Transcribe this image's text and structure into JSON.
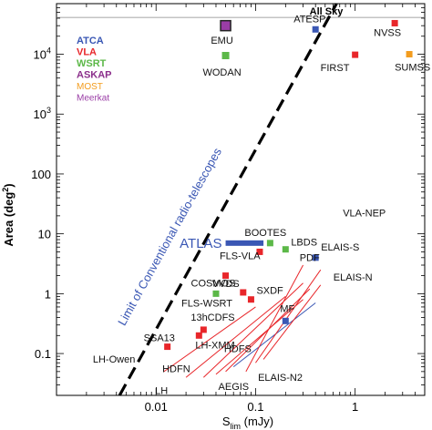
{
  "chart_data": {
    "type": "scatter",
    "title": "",
    "xlabel_main": "S",
    "xlabel_sub": "lim",
    "xlabel_unit": " (mJy)",
    "ylabel_main": "Area (deg",
    "ylabel_sup": "2",
    "ylabel_close": ")",
    "x_scale": "log",
    "y_scale": "log",
    "xlim": [
      0.001,
      5
    ],
    "ylim": [
      0.02,
      70000
    ],
    "x_ticks": [
      {
        "value": 0.01,
        "label": "0.01"
      },
      {
        "value": 0.1,
        "label": "0.1"
      },
      {
        "value": 1,
        "label": "1"
      }
    ],
    "y_ticks": [
      {
        "value": 0.1,
        "label": "0.1"
      },
      {
        "value": 1,
        "label": "1"
      },
      {
        "value": 10,
        "label": "10"
      },
      {
        "value": 100,
        "label": "100"
      },
      {
        "value": 1000,
        "label": "10",
        "sup": "3"
      },
      {
        "value": 10000,
        "label": "10",
        "sup": "4"
      }
    ],
    "all_sky": {
      "label": "All Sky",
      "area": 41253
    },
    "limit_line": {
      "label": "Limit of Conventional radio-telescopes",
      "p1": [
        0.0043,
        0.02
      ],
      "p2": [
        0.65,
        70000
      ]
    },
    "legend": [
      {
        "label": "ATCA",
        "color": "#3a57b4"
      },
      {
        "label": "VLA",
        "color": "#e8262a"
      },
      {
        "label": "WSRT",
        "color": "#5cb848"
      },
      {
        "label": "ASKAP",
        "color": "#8b2e8b"
      },
      {
        "label": "MOST",
        "color": "#f39c1e"
      },
      {
        "label": "Meerkat",
        "color": "#9a3da6"
      }
    ],
    "atlas": {
      "label": "ATLAS",
      "color": "#3a57b4",
      "x_start": 0.05,
      "x_end": 0.12,
      "area": 7
    },
    "points": [
      {
        "label": "EMU",
        "x": 0.05,
        "y": 30000,
        "color": "#9a3da6",
        "size": "large"
      },
      {
        "label": "WODAN",
        "x": 0.05,
        "y": 9500,
        "color": "#5cb848",
        "size": "medium"
      },
      {
        "label": "NVSS",
        "x": 2.5,
        "y": 33000,
        "color": "#e8262a",
        "size": "small"
      },
      {
        "label": "FIRST",
        "x": 1.0,
        "y": 9800,
        "color": "#e8262a",
        "size": "small"
      },
      {
        "label": "SUMSS",
        "x": 3.5,
        "y": 10000,
        "color": "#f39c1e",
        "size": "small"
      },
      {
        "label": "ATESP",
        "x": 0.4,
        "y": 26000,
        "color": "#3a57b4",
        "size": "small"
      },
      {
        "label": "VLA-NEP",
        "x": 0.4,
        "y": 26,
        "color": "#e8262a",
        "size": "none"
      },
      {
        "label": "BOOTES",
        "x": 0.14,
        "y": 7,
        "color": "#5cb848",
        "size": "small"
      },
      {
        "label": "LBDS",
        "x": 0.2,
        "y": 5.5,
        "color": "#5cb848",
        "size": "small"
      },
      {
        "label": "FLS-VLA",
        "x": 0.11,
        "y": 5,
        "color": "#e8262a",
        "size": "small"
      },
      {
        "label": "PDF",
        "x": 0.16,
        "y": 5,
        "color": "#5cb848",
        "size": "none"
      },
      {
        "label": "ELAIS-S",
        "x": 0.4,
        "y": 4,
        "color": "#3a57b4",
        "size": "small"
      },
      {
        "label": "ELAIS-N",
        "x": 0.45,
        "y": 2.2,
        "color": "#e8262a",
        "size": "none"
      },
      {
        "label": "COSMOS",
        "x": 0.05,
        "y": 2,
        "color": "#e8262a",
        "size": "small"
      },
      {
        "label": "VVDS",
        "x": 0.075,
        "y": 1.05,
        "color": "#e8262a",
        "size": "small"
      },
      {
        "label": "FLS-WSRT",
        "x": 0.04,
        "y": 1.0,
        "color": "#5cb848",
        "size": "small"
      },
      {
        "label": "SXDF",
        "x": 0.09,
        "y": 0.8,
        "color": "#e8262a",
        "size": "small"
      },
      {
        "label": "MF",
        "x": 0.2,
        "y": 0.35,
        "color": "#3a57b4",
        "size": "small"
      },
      {
        "label": "SSA13",
        "x": 0.013,
        "y": 0.13,
        "color": "#e8262a",
        "size": "small"
      },
      {
        "label": "13hCDFS",
        "x": 0.03,
        "y": 0.25,
        "color": "#e8262a",
        "size": "small"
      },
      {
        "label": "LH-XMM",
        "x": 0.027,
        "y": 0.2,
        "color": "#e8262a",
        "size": "small"
      },
      {
        "label": "HDFS",
        "x": 0.08,
        "y": 0.15,
        "color": "#e8262a",
        "size": "none"
      },
      {
        "label": "LH-Owen",
        "x": 0.012,
        "y": 0.1,
        "color": "#e8262a",
        "size": "none"
      },
      {
        "label": "HDFN",
        "x": 0.02,
        "y": 0.07,
        "color": "#e8262a",
        "size": "none"
      },
      {
        "label": "ELAIS-N2",
        "x": 0.12,
        "y": 0.05,
        "color": "#e8262a",
        "size": "none"
      },
      {
        "label": "AEGIS",
        "x": 0.07,
        "y": 0.035,
        "color": "#e8262a",
        "size": "none"
      },
      {
        "label": "LH",
        "x": 0.02,
        "y": 0.03,
        "color": "#e8262a",
        "size": "none"
      }
    ]
  }
}
